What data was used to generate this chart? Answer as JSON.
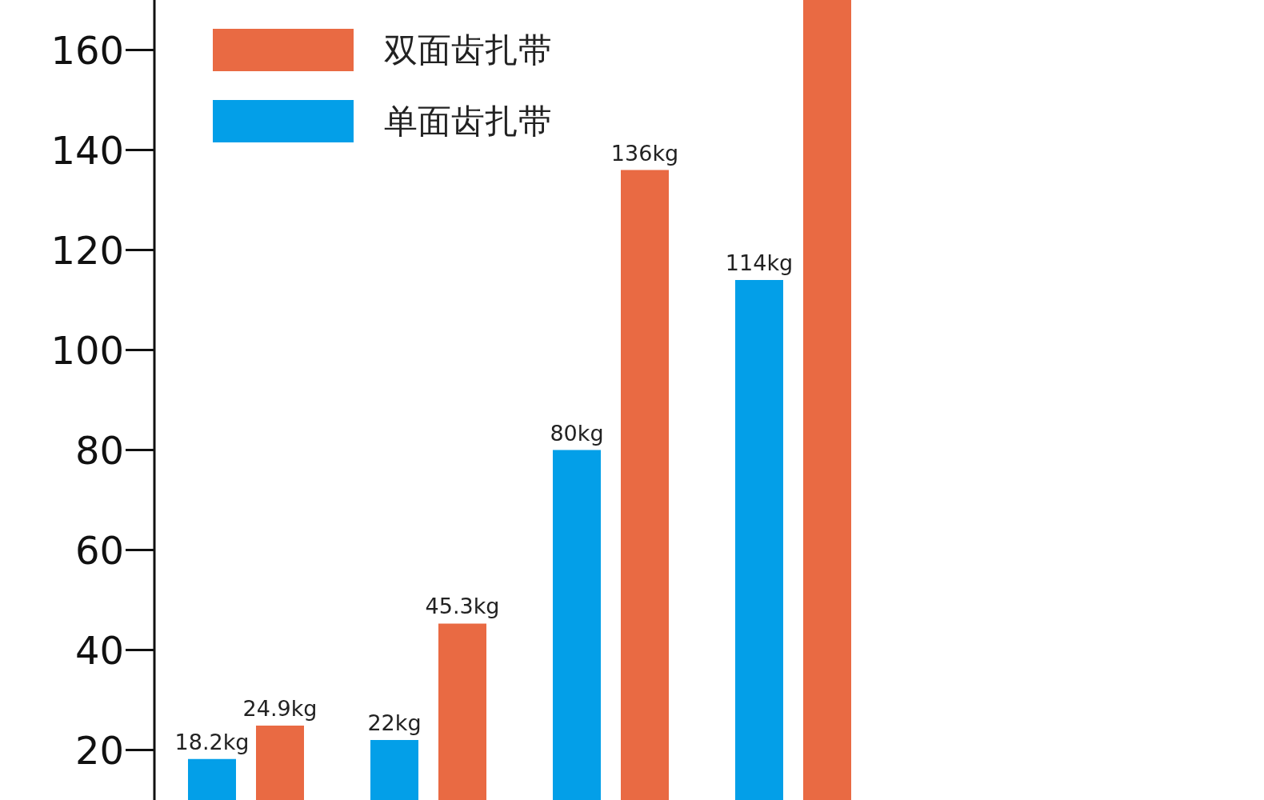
{
  "chart_data": {
    "type": "bar",
    "categories": [
      null,
      null,
      null,
      null
    ],
    "series": [
      {
        "name": "双面齿扎带",
        "color": "#e96a43",
        "values": [
          24.9,
          45.3,
          136,
          170
        ],
        "value_labels": [
          "24.9kg",
          "45.3kg",
          "136kg",
          null
        ]
      },
      {
        "name": "单面齿扎带",
        "color": "#039fe8",
        "values": [
          18.2,
          22,
          80,
          114
        ],
        "value_labels": [
          "18.2kg",
          "22kg",
          "80kg",
          "114kg"
        ]
      }
    ],
    "ylim": [
      10,
      170
    ],
    "yticks": [
      20,
      40,
      60,
      80,
      100,
      120,
      140,
      160
    ],
    "legend": "top left",
    "tick_labels": "y"
  }
}
